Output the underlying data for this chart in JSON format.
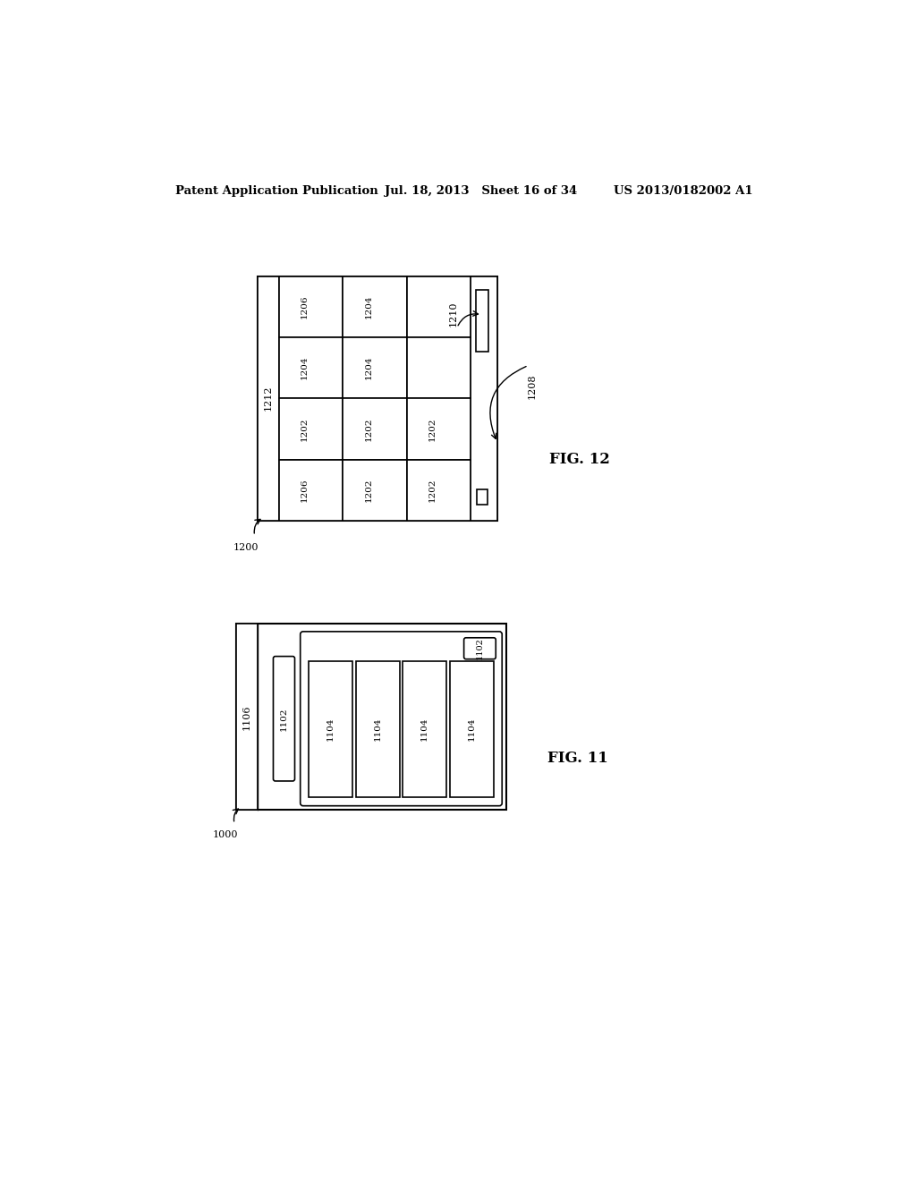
{
  "header_left": "Patent Application Publication",
  "header_mid": "Jul. 18, 2013   Sheet 16 of 34",
  "header_right": "US 2013/0182002 A1",
  "fig12": {
    "fig_label": "FIG. 12",
    "ref_1200": "1200",
    "ref_1208": "1208",
    "ref_1210": "1210",
    "ref_1212": "1212",
    "grid_labels": [
      [
        "1206",
        "1204",
        ""
      ],
      [
        "1204",
        "1204",
        ""
      ],
      [
        "1202",
        "1202",
        "1202"
      ],
      [
        "1206",
        "1202",
        "1202"
      ]
    ]
  },
  "fig11": {
    "fig_label": "FIG. 11",
    "ref_1000": "1000",
    "ref_1106": "1106",
    "ref_1102_col": "1102",
    "ref_1102_btn": "1102",
    "ref_1104_list": [
      "1104",
      "1104",
      "1104",
      "1104"
    ]
  }
}
